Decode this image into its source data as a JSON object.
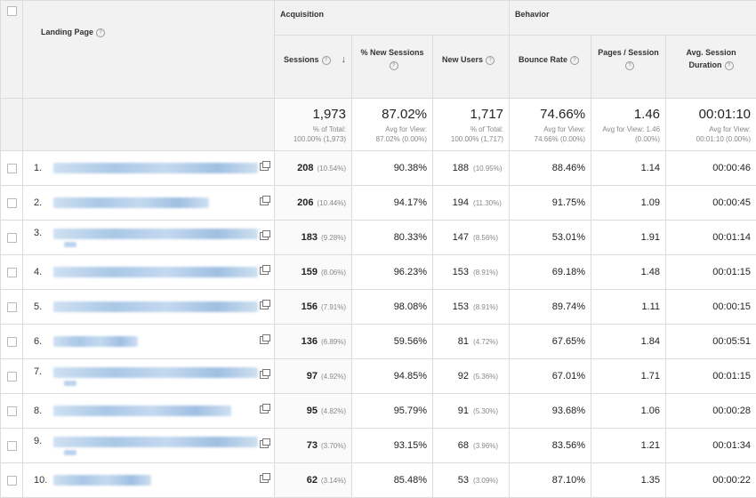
{
  "header": {
    "landing_page": "Landing Page",
    "group_acquisition": "Acquisition",
    "group_behavior": "Behavior",
    "columns": {
      "sessions": "Sessions",
      "new_sessions": "% New Sessions",
      "new_users": "New Users",
      "bounce_rate": "Bounce Rate",
      "pages_session": "Pages / Session",
      "avg_duration_1": "Avg. Session",
      "avg_duration_2": "Duration"
    },
    "help_glyph": "?",
    "sort_glyph": "↓"
  },
  "totals": {
    "sessions": {
      "big": "1,973",
      "l1": "% of Total:",
      "l2": "100.00% (1,973)"
    },
    "new_sessions": {
      "big": "87.02%",
      "l1": "Avg for View:",
      "l2": "87.02% (0.00%)"
    },
    "new_users": {
      "big": "1,717",
      "l1": "% of Total:",
      "l2": "100.00% (1,717)"
    },
    "bounce_rate": {
      "big": "74.66%",
      "l1": "Avg for View:",
      "l2": "74.66% (0.00%)"
    },
    "pages_session": {
      "big": "1.46",
      "l1": "Avg for View: 1.46",
      "l2": "(0.00%)"
    },
    "avg_duration": {
      "big": "00:01:10",
      "l1": "Avg for View:",
      "l2": "00:01:10 (0.00%)"
    }
  },
  "rows": [
    {
      "idx": "1.",
      "sessions": "208",
      "sessions_pct": "(10.54%)",
      "new_sessions": "90.38%",
      "new_users": "188",
      "new_users_pct": "(10.95%)",
      "bounce_rate": "88.46%",
      "pages_session": "1.14",
      "avg_duration": "00:00:46"
    },
    {
      "idx": "2.",
      "sessions": "206",
      "sessions_pct": "(10.44%)",
      "new_sessions": "94.17%",
      "new_users": "194",
      "new_users_pct": "(11.30%)",
      "bounce_rate": "91.75%",
      "pages_session": "1.09",
      "avg_duration": "00:00:45"
    },
    {
      "idx": "3.",
      "sessions": "183",
      "sessions_pct": "(9.28%)",
      "new_sessions": "80.33%",
      "new_users": "147",
      "new_users_pct": "(8.56%)",
      "bounce_rate": "53.01%",
      "pages_session": "1.91",
      "avg_duration": "00:01:14"
    },
    {
      "idx": "4.",
      "sessions": "159",
      "sessions_pct": "(8.06%)",
      "new_sessions": "96.23%",
      "new_users": "153",
      "new_users_pct": "(8.91%)",
      "bounce_rate": "69.18%",
      "pages_session": "1.48",
      "avg_duration": "00:01:15"
    },
    {
      "idx": "5.",
      "sessions": "156",
      "sessions_pct": "(7.91%)",
      "new_sessions": "98.08%",
      "new_users": "153",
      "new_users_pct": "(8.91%)",
      "bounce_rate": "89.74%",
      "pages_session": "1.11",
      "avg_duration": "00:00:15"
    },
    {
      "idx": "6.",
      "sessions": "136",
      "sessions_pct": "(6.89%)",
      "new_sessions": "59.56%",
      "new_users": "81",
      "new_users_pct": "(4.72%)",
      "bounce_rate": "67.65%",
      "pages_session": "1.84",
      "avg_duration": "00:05:51"
    },
    {
      "idx": "7.",
      "sessions": "97",
      "sessions_pct": "(4.92%)",
      "new_sessions": "94.85%",
      "new_users": "92",
      "new_users_pct": "(5.36%)",
      "bounce_rate": "67.01%",
      "pages_session": "1.71",
      "avg_duration": "00:01:15"
    },
    {
      "idx": "8.",
      "sessions": "95",
      "sessions_pct": "(4.82%)",
      "new_sessions": "95.79%",
      "new_users": "91",
      "new_users_pct": "(5.30%)",
      "bounce_rate": "93.68%",
      "pages_session": "1.06",
      "avg_duration": "00:00:28"
    },
    {
      "idx": "9.",
      "sessions": "73",
      "sessions_pct": "(3.70%)",
      "new_sessions": "93.15%",
      "new_users": "68",
      "new_users_pct": "(3.96%)",
      "bounce_rate": "83.56%",
      "pages_session": "1.21",
      "avg_duration": "00:01:34"
    },
    {
      "idx": "10.",
      "sessions": "62",
      "sessions_pct": "(3.14%)",
      "new_sessions": "85.48%",
      "new_users": "53",
      "new_users_pct": "(3.09%)",
      "bounce_rate": "87.10%",
      "pages_session": "1.35",
      "avg_duration": "00:00:22"
    }
  ]
}
